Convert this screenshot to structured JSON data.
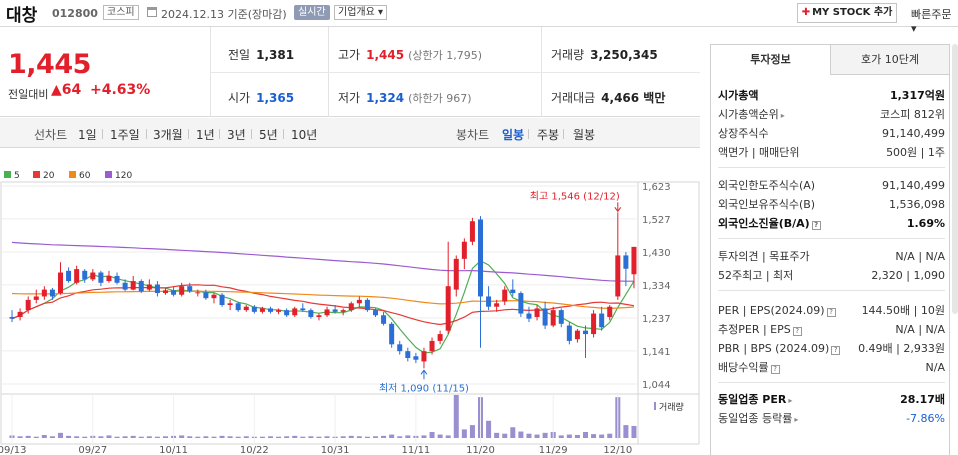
{
  "header": {
    "name": "대창",
    "code": "012800",
    "market": "코스피",
    "date": "2024.12.13  기준(장마감)",
    "realtime": "실시간",
    "company_overview": "기업개요 ▾",
    "mystock_label": "MY STOCK 추가",
    "quick_order": "빠른주문 ▾"
  },
  "summary": {
    "price": "1,445",
    "change_label": "전일대비",
    "change_value": "▲64",
    "change_pct": "+4.63%",
    "prev_close_label": "전일",
    "prev_close": "1,381",
    "high_label": "고가",
    "high": "1,445",
    "upper_limit": "(상한가 1,795)",
    "volume_label": "거래량",
    "volume": "3,250,345",
    "open_label": "시가",
    "open": "1,365",
    "low_label": "저가",
    "low": "1,324",
    "lower_limit": "(하한가 967)",
    "amount_label": "거래대금",
    "amount": "4,466 백만"
  },
  "toolbar": {
    "line_chart": "선차트",
    "periods": [
      "1일",
      "1주일",
      "3개월",
      "1년",
      "3년",
      "5년",
      "10년"
    ],
    "candle_chart": "봉차트",
    "candle_periods": [
      "일봉",
      "주봉",
      "월봉"
    ],
    "selected_candle": "일봉"
  },
  "colors": {
    "up": "#e2202c",
    "down": "#2a6fd6",
    "ma5": "#4caf50",
    "ma20": "#e53935",
    "ma60": "#ef8a1c",
    "ma120": "#9c5ccf"
  },
  "chart_data": {
    "type": "candlestick",
    "legend": [
      {
        "name": "5",
        "color": "#4caf50"
      },
      {
        "name": "20",
        "color": "#e53935"
      },
      {
        "name": "60",
        "color": "#ef8a1c"
      },
      {
        "name": "120",
        "color": "#9c5ccf"
      }
    ],
    "y_ticks": [
      1623,
      1527,
      1430,
      1334,
      1237,
      1141,
      1044
    ],
    "ylim": [
      1044,
      1623
    ],
    "x_labels": [
      "09/13",
      "09/27",
      "10/11",
      "10/22",
      "10/31",
      "11/11",
      "11/20",
      "11/29",
      "12/10"
    ],
    "x_label_index": [
      0,
      10,
      20,
      30,
      40,
      50,
      58,
      67,
      75
    ],
    "max_annotation": "최고 1,546 (12/12)",
    "min_annotation": "최저 1,090 (11/15)",
    "volume_label": "거래량",
    "candles": [
      {
        "o": 1240,
        "h": 1260,
        "l": 1225,
        "c": 1235
      },
      {
        "o": 1240,
        "h": 1265,
        "l": 1230,
        "c": 1255
      },
      {
        "o": 1260,
        "h": 1300,
        "l": 1250,
        "c": 1290
      },
      {
        "o": 1290,
        "h": 1320,
        "l": 1280,
        "c": 1300
      },
      {
        "o": 1300,
        "h": 1330,
        "l": 1290,
        "c": 1320
      },
      {
        "o": 1320,
        "h": 1325,
        "l": 1290,
        "c": 1300
      },
      {
        "o": 1310,
        "h": 1400,
        "l": 1305,
        "c": 1370
      },
      {
        "o": 1375,
        "h": 1385,
        "l": 1340,
        "c": 1345
      },
      {
        "o": 1340,
        "h": 1390,
        "l": 1335,
        "c": 1380
      },
      {
        "o": 1375,
        "h": 1380,
        "l": 1340,
        "c": 1350
      },
      {
        "o": 1350,
        "h": 1380,
        "l": 1345,
        "c": 1370
      },
      {
        "o": 1370,
        "h": 1375,
        "l": 1330,
        "c": 1340
      },
      {
        "o": 1345,
        "h": 1375,
        "l": 1340,
        "c": 1360
      },
      {
        "o": 1360,
        "h": 1370,
        "l": 1335,
        "c": 1340
      },
      {
        "o": 1340,
        "h": 1350,
        "l": 1315,
        "c": 1320
      },
      {
        "o": 1320,
        "h": 1360,
        "l": 1318,
        "c": 1345
      },
      {
        "o": 1345,
        "h": 1350,
        "l": 1310,
        "c": 1315
      },
      {
        "o": 1320,
        "h": 1350,
        "l": 1315,
        "c": 1335
      },
      {
        "o": 1335,
        "h": 1345,
        "l": 1300,
        "c": 1310
      },
      {
        "o": 1310,
        "h": 1325,
        "l": 1305,
        "c": 1318
      },
      {
        "o": 1318,
        "h": 1330,
        "l": 1300,
        "c": 1305
      },
      {
        "o": 1305,
        "h": 1340,
        "l": 1300,
        "c": 1330
      },
      {
        "o": 1330,
        "h": 1340,
        "l": 1310,
        "c": 1315
      },
      {
        "o": 1310,
        "h": 1320,
        "l": 1300,
        "c": 1312
      },
      {
        "o": 1312,
        "h": 1320,
        "l": 1290,
        "c": 1295
      },
      {
        "o": 1295,
        "h": 1310,
        "l": 1280,
        "c": 1305
      },
      {
        "o": 1305,
        "h": 1310,
        "l": 1270,
        "c": 1275
      },
      {
        "o": 1275,
        "h": 1290,
        "l": 1260,
        "c": 1280
      },
      {
        "o": 1280,
        "h": 1285,
        "l": 1255,
        "c": 1260
      },
      {
        "o": 1260,
        "h": 1275,
        "l": 1255,
        "c": 1270
      },
      {
        "o": 1270,
        "h": 1275,
        "l": 1250,
        "c": 1255
      },
      {
        "o": 1255,
        "h": 1270,
        "l": 1250,
        "c": 1265
      },
      {
        "o": 1265,
        "h": 1270,
        "l": 1250,
        "c": 1255
      },
      {
        "o": 1255,
        "h": 1265,
        "l": 1248,
        "c": 1260
      },
      {
        "o": 1260,
        "h": 1265,
        "l": 1240,
        "c": 1245
      },
      {
        "o": 1245,
        "h": 1270,
        "l": 1240,
        "c": 1265
      },
      {
        "o": 1265,
        "h": 1280,
        "l": 1255,
        "c": 1260
      },
      {
        "o": 1260,
        "h": 1265,
        "l": 1235,
        "c": 1240
      },
      {
        "o": 1240,
        "h": 1250,
        "l": 1230,
        "c": 1245
      },
      {
        "o": 1245,
        "h": 1270,
        "l": 1240,
        "c": 1262
      },
      {
        "o": 1262,
        "h": 1275,
        "l": 1250,
        "c": 1255
      },
      {
        "o": 1255,
        "h": 1265,
        "l": 1245,
        "c": 1260
      },
      {
        "o": 1260,
        "h": 1285,
        "l": 1255,
        "c": 1280
      },
      {
        "o": 1280,
        "h": 1300,
        "l": 1270,
        "c": 1290
      },
      {
        "o": 1290,
        "h": 1295,
        "l": 1255,
        "c": 1260
      },
      {
        "o": 1260,
        "h": 1265,
        "l": 1240,
        "c": 1245
      },
      {
        "o": 1245,
        "h": 1255,
        "l": 1215,
        "c": 1220
      },
      {
        "o": 1220,
        "h": 1225,
        "l": 1150,
        "c": 1160
      },
      {
        "o": 1160,
        "h": 1170,
        "l": 1130,
        "c": 1140
      },
      {
        "o": 1140,
        "h": 1150,
        "l": 1110,
        "c": 1120
      },
      {
        "o": 1125,
        "h": 1135,
        "l": 1105,
        "c": 1115
      },
      {
        "o": 1110,
        "h": 1150,
        "l": 1090,
        "c": 1140
      },
      {
        "o": 1140,
        "h": 1180,
        "l": 1130,
        "c": 1170
      },
      {
        "o": 1170,
        "h": 1200,
        "l": 1160,
        "c": 1190
      },
      {
        "o": 1200,
        "h": 1460,
        "l": 1190,
        "c": 1330
      },
      {
        "o": 1320,
        "h": 1420,
        "l": 1300,
        "c": 1410
      },
      {
        "o": 1410,
        "h": 1470,
        "l": 1380,
        "c": 1460
      },
      {
        "o": 1460,
        "h": 1530,
        "l": 1450,
        "c": 1520
      },
      {
        "o": 1525,
        "h": 1535,
        "l": 1150,
        "c": 1300
      },
      {
        "o": 1300,
        "h": 1330,
        "l": 1260,
        "c": 1270
      },
      {
        "o": 1270,
        "h": 1290,
        "l": 1255,
        "c": 1280
      },
      {
        "o": 1285,
        "h": 1330,
        "l": 1275,
        "c": 1320
      },
      {
        "o": 1320,
        "h": 1350,
        "l": 1300,
        "c": 1310
      },
      {
        "o": 1310,
        "h": 1315,
        "l": 1240,
        "c": 1250
      },
      {
        "o": 1250,
        "h": 1270,
        "l": 1225,
        "c": 1235
      },
      {
        "o": 1240,
        "h": 1275,
        "l": 1230,
        "c": 1265
      },
      {
        "o": 1265,
        "h": 1285,
        "l": 1205,
        "c": 1215
      },
      {
        "o": 1215,
        "h": 1270,
        "l": 1210,
        "c": 1260
      },
      {
        "o": 1260,
        "h": 1265,
        "l": 1210,
        "c": 1220
      },
      {
        "o": 1215,
        "h": 1225,
        "l": 1160,
        "c": 1170
      },
      {
        "o": 1175,
        "h": 1205,
        "l": 1165,
        "c": 1200
      },
      {
        "o": 1200,
        "h": 1215,
        "l": 1120,
        "c": 1190
      },
      {
        "o": 1190,
        "h": 1260,
        "l": 1180,
        "c": 1250
      },
      {
        "o": 1250,
        "h": 1270,
        "l": 1200,
        "c": 1210
      },
      {
        "o": 1240,
        "h": 1275,
        "l": 1230,
        "c": 1270
      },
      {
        "o": 1300,
        "h": 1546,
        "l": 1290,
        "c": 1420
      },
      {
        "o": 1420,
        "h": 1430,
        "l": 1330,
        "c": 1381
      },
      {
        "o": 1365,
        "h": 1445,
        "l": 1324,
        "c": 1445
      }
    ],
    "volumes": [
      6,
      4,
      5,
      3,
      7,
      4,
      12,
      5,
      4,
      3,
      5,
      4,
      6,
      3,
      4,
      5,
      3,
      4,
      3,
      4,
      5,
      6,
      4,
      3,
      4,
      3,
      5,
      4,
      3,
      4,
      3,
      3,
      4,
      3,
      4,
      5,
      3,
      4,
      3,
      4,
      3,
      4,
      5,
      4,
      3,
      4,
      5,
      8,
      4,
      6,
      5,
      6,
      14,
      8,
      6,
      100,
      20,
      30,
      95,
      40,
      12,
      10,
      25,
      15,
      10,
      8,
      12,
      14,
      6,
      8,
      7,
      14,
      9,
      8,
      10,
      95,
      30,
      28
    ]
  },
  "invest": {
    "tab_active": "투자정보",
    "tab_inactive": "호가 10단계",
    "rows_a": [
      {
        "label": "시가총액",
        "value": "1,317억원",
        "bold": true
      },
      {
        "label": "시가총액순위",
        "value": "코스피  812위",
        "arrow": true
      },
      {
        "label": "상장주식수",
        "value": "91,140,499"
      },
      {
        "label": "액면가 | 매매단위",
        "value": "500원  |  1주"
      }
    ],
    "rows_b": [
      {
        "label": "외국인한도주식수(A)",
        "value": "91,140,499"
      },
      {
        "label": "외국인보유주식수(B)",
        "value": "1,536,098"
      },
      {
        "label": "외국인소진율(B/A)",
        "value": "1.69%",
        "bold": true,
        "q": true
      }
    ],
    "rows_c": [
      {
        "label": "투자의견 | 목표주가",
        "value": "N/A  |  N/A"
      },
      {
        "label": "52주최고 | 최저",
        "value": "2,320  |  1,090"
      }
    ],
    "rows_d": [
      {
        "label": "PER | EPS(2024.09)",
        "value": "144.50배  |  10원",
        "q": true
      },
      {
        "label": "추정PER | EPS",
        "value": "N/A  |  N/A",
        "q": true
      },
      {
        "label": "PBR | BPS (2024.09)",
        "value": "0.49배  |  2,933원",
        "q": true
      },
      {
        "label": "배당수익률",
        "value": "N/A",
        "q": true
      }
    ],
    "rows_e": [
      {
        "label": "동일업종 PER",
        "value": "28.17배",
        "bold": true,
        "arrow": true
      },
      {
        "label": "동일업종 등락률",
        "value": "-7.86%",
        "arrow": true,
        "blue": true
      }
    ]
  }
}
